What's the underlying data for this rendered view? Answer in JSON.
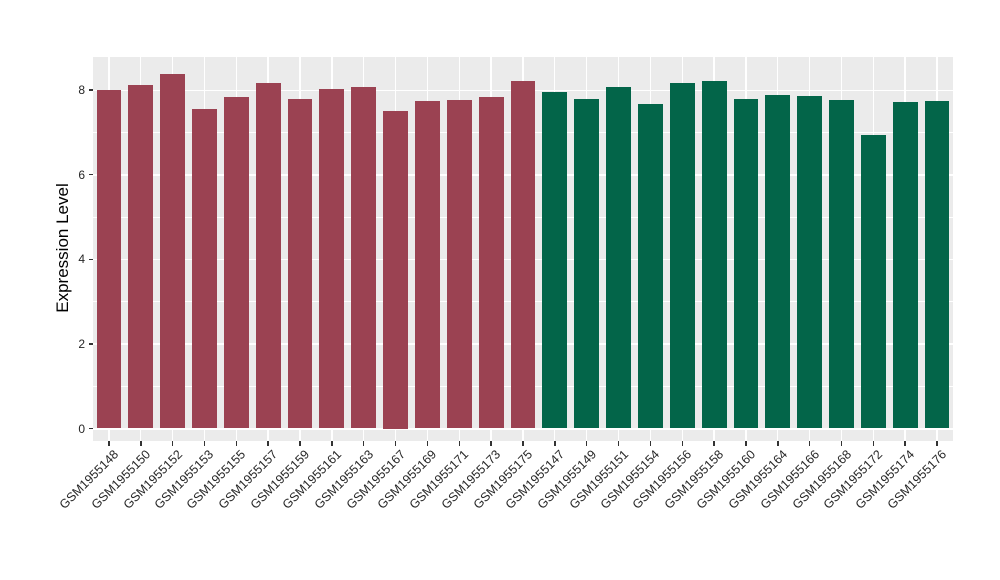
{
  "figure": {
    "background": "#FFFFFF",
    "panel_background": "#EBEBEB",
    "gridline_color": "#FFFFFF",
    "tick_color": "#333333",
    "axis_text_color": "#262626"
  },
  "chart_data": {
    "type": "bar",
    "title": "",
    "xlabel": "",
    "ylabel": "Expression Level",
    "ylim": [
      0,
      8.8
    ],
    "yticks": [
      0,
      2,
      4,
      6,
      8
    ],
    "grid": "white major and minor gridlines on gray panel, vertical gridline at each category",
    "legend": false,
    "categories": [
      "GSM1955148",
      "GSM1955150",
      "GSM1955152",
      "GSM1955153",
      "GSM1955155",
      "GSM1955157",
      "GSM1955159",
      "GSM1955161",
      "GSM1955163",
      "GSM1955167",
      "GSM1955169",
      "GSM1955171",
      "GSM1955173",
      "GSM1955175",
      "GSM1955147",
      "GSM1955149",
      "GSM1955151",
      "GSM1955154",
      "GSM1955156",
      "GSM1955158",
      "GSM1955160",
      "GSM1955164",
      "GSM1955166",
      "GSM1955168",
      "GSM1955172",
      "GSM1955174",
      "GSM1955176"
    ],
    "values": [
      8.0,
      8.11,
      8.38,
      7.56,
      7.84,
      8.17,
      7.8,
      8.02,
      8.07,
      7.5,
      7.75,
      7.76,
      7.84,
      8.22,
      7.95,
      7.79,
      8.07,
      7.67,
      8.16,
      8.22,
      7.79,
      7.89,
      7.86,
      7.77,
      6.95,
      7.71,
      7.74
    ],
    "groups": [
      "group1",
      "group1",
      "group1",
      "group1",
      "group1",
      "group1",
      "group1",
      "group1",
      "group1",
      "group1",
      "group1",
      "group1",
      "group1",
      "group1",
      "group2",
      "group2",
      "group2",
      "group2",
      "group2",
      "group2",
      "group2",
      "group2",
      "group2",
      "group2",
      "group2",
      "group2",
      "group2"
    ],
    "group_colors": {
      "group1": "#9B4252",
      "group2": "#036549"
    }
  }
}
